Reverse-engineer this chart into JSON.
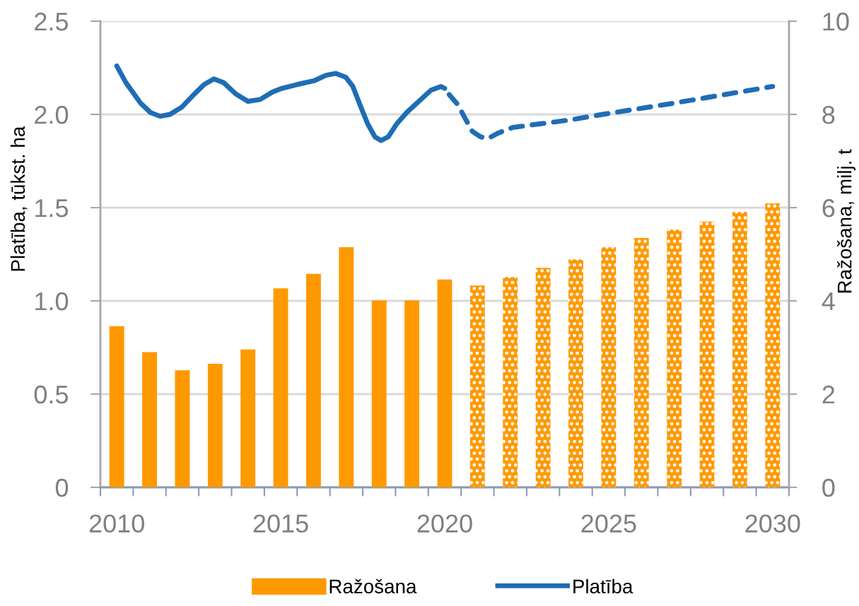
{
  "chart_data": {
    "type": "bar",
    "series": [
      {
        "name": "Ražošana",
        "axis": "y2",
        "color": "#ff9900",
        "x": [
          2010,
          2011,
          2012,
          2013,
          2014,
          2015,
          2016,
          2017,
          2018,
          2019,
          2020
        ],
        "values": [
          3.46,
          2.9,
          2.51,
          2.65,
          2.96,
          4.27,
          4.58,
          5.15,
          4.01,
          4.01,
          4.46
        ]
      },
      {
        "axis": "y2",
        "color": "#ff9900",
        "line_style": "dotted",
        "x": [
          2021,
          2022,
          2023,
          2024,
          2025,
          2026,
          2027,
          2028,
          2029,
          2030
        ],
        "values": [
          4.33,
          4.51,
          4.71,
          4.89,
          5.15,
          5.35,
          5.53,
          5.7,
          5.91,
          6.09
        ]
      },
      {
        "name": "Platība",
        "type": "line",
        "axis": "y",
        "color": "#1f6db5",
        "x": [
          2010,
          2010.28,
          2010.73,
          2011.03,
          2011.32,
          2011.62,
          2011.99,
          2012.37,
          2012.66,
          2012.96,
          2013.26,
          2013.63,
          2014.0,
          2014.37,
          2014.75,
          2015.04,
          2015.49,
          2016.01,
          2016.38,
          2016.68,
          2016.98,
          2017.2,
          2017.42,
          2017.65,
          2017.87,
          2018.06,
          2018.28,
          2018.54,
          2018.84,
          2019.21,
          2019.58,
          2019.88,
          2020.0
        ],
        "values": [
          2.26,
          2.17,
          2.06,
          2.01,
          1.99,
          2.0,
          2.04,
          2.11,
          2.16,
          2.19,
          2.17,
          2.11,
          2.07,
          2.08,
          2.12,
          2.14,
          2.16,
          2.18,
          2.21,
          2.22,
          2.2,
          2.15,
          2.05,
          1.95,
          1.88,
          1.86,
          1.88,
          1.95,
          2.01,
          2.07,
          2.13,
          2.15,
          2.14
        ]
      },
      {
        "type": "line",
        "axis": "y",
        "color": "#1f6db5",
        "line_style": "dashed",
        "x": [
          2020.0,
          2020.12,
          2020.41,
          2020.62,
          2020.84,
          2021.09,
          2021.31,
          2021.63,
          2022.07,
          2022.93,
          2023.8,
          2024.81,
          2025.89,
          2026.97,
          2027.98,
          2028.99,
          2030.0
        ],
        "values": [
          2.14,
          2.11,
          2.05,
          1.98,
          1.91,
          1.88,
          1.87,
          1.9,
          1.93,
          1.95,
          1.97,
          2.0,
          2.03,
          2.06,
          2.09,
          2.12,
          2.15
        ]
      }
    ],
    "ylabel": "Platība, tūkst. ha",
    "y2label": "Ražošana, milj. t",
    "xlim": [
      2009.5,
      2030.5
    ],
    "xticks": [
      {
        "value": 2009.5,
        "label": null
      },
      2010,
      {
        "value": 2010.5,
        "label": null
      },
      {
        "value": 2011.5,
        "label": null
      },
      {
        "value": 2012.5,
        "label": null
      },
      {
        "value": 2013.5,
        "label": null
      },
      {
        "value": 2014.5,
        "label": null
      },
      2015,
      {
        "value": 2015.5,
        "label": null
      },
      {
        "value": 2016.5,
        "label": null
      },
      {
        "value": 2017.5,
        "label": null
      },
      {
        "value": 2018.5,
        "label": null
      },
      {
        "value": 2019.5,
        "label": null
      },
      2020,
      {
        "value": 2020.5,
        "label": null
      },
      {
        "value": 2021.5,
        "label": null
      },
      {
        "value": 2022.5,
        "label": null
      },
      {
        "value": 2023.5,
        "label": null
      },
      {
        "value": 2024.5,
        "label": null
      },
      2025,
      {
        "value": 2025.5,
        "label": null
      },
      {
        "value": 2026.5,
        "label": null
      },
      {
        "value": 2027.5,
        "label": null
      },
      {
        "value": 2028.5,
        "label": null
      },
      {
        "value": 2029.5,
        "label": null
      },
      2030,
      {
        "value": 2030.5,
        "label": null
      }
    ],
    "ylim": [
      0,
      2.5
    ],
    "yticks": [
      0,
      0.5,
      {
        "value": 1,
        "label": "1.0"
      },
      1.5,
      {
        "value": 2,
        "label": "2.0"
      },
      2.5
    ],
    "y2lim": [
      0,
      10
    ],
    "y2ticks": [
      0,
      2,
      4,
      6,
      8,
      10
    ],
    "grid": "y",
    "legend": "bottom"
  }
}
